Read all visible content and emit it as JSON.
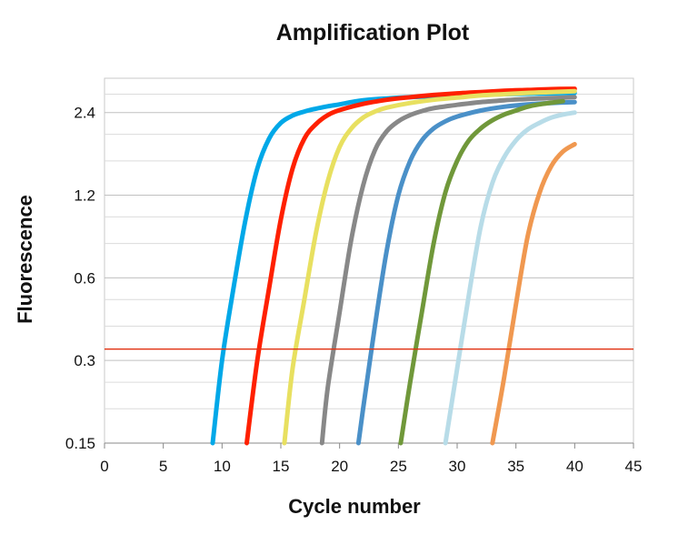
{
  "chart_data": {
    "type": "line",
    "title": "Amplification Plot",
    "xlabel": "Cycle number",
    "ylabel": "Fluorescence",
    "xlim": [
      0,
      45
    ],
    "ylim": [
      0.15,
      3.2
    ],
    "yscale": "log",
    "x_ticks": [
      0,
      5,
      10,
      15,
      20,
      25,
      30,
      35,
      40,
      45
    ],
    "y_ticks": [
      0.15,
      0.3,
      0.6,
      1.2,
      2.4
    ],
    "y_tick_labels": [
      "0.15",
      "0.3",
      "0.6",
      "1.2",
      "2.4"
    ],
    "grid": "horizontal",
    "legend": "none",
    "threshold": {
      "value": 0.33,
      "color": "#e03010"
    },
    "series": [
      {
        "color": "#00a8e8",
        "x": [
          9.2,
          10,
          11,
          12,
          13,
          14,
          15,
          16,
          17,
          18,
          19,
          20,
          21,
          22,
          24,
          26,
          28,
          30,
          32,
          34,
          36,
          38,
          40
        ],
        "y": [
          0.15,
          0.3,
          0.56,
          0.98,
          1.5,
          1.93,
          2.2,
          2.34,
          2.42,
          2.48,
          2.53,
          2.57,
          2.62,
          2.66,
          2.7,
          2.73,
          2.75,
          2.77,
          2.79,
          2.8,
          2.81,
          2.82,
          2.83
        ]
      },
      {
        "color": "#ff2000",
        "x": [
          12.1,
          13,
          14,
          15,
          16,
          17,
          18,
          19,
          20,
          22,
          24,
          26,
          28,
          30,
          32,
          34,
          36,
          38,
          40
        ],
        "y": [
          0.15,
          0.3,
          0.55,
          0.98,
          1.5,
          1.93,
          2.18,
          2.35,
          2.45,
          2.58,
          2.67,
          2.73,
          2.78,
          2.82,
          2.85,
          2.88,
          2.9,
          2.92,
          2.93
        ]
      },
      {
        "color": "#e8e060",
        "x": [
          15.3,
          16,
          17,
          18,
          19,
          20,
          21,
          22,
          23,
          24,
          26,
          28,
          30,
          32,
          34,
          36,
          38,
          40
        ],
        "y": [
          0.15,
          0.28,
          0.5,
          0.88,
          1.35,
          1.8,
          2.1,
          2.3,
          2.42,
          2.5,
          2.6,
          2.67,
          2.72,
          2.77,
          2.8,
          2.83,
          2.85,
          2.87
        ]
      },
      {
        "color": "#888888",
        "x": [
          18.5,
          19,
          20,
          21,
          22,
          23,
          24,
          25,
          26,
          27,
          28,
          30,
          32,
          34,
          36,
          38,
          40
        ],
        "y": [
          0.15,
          0.24,
          0.45,
          0.83,
          1.3,
          1.75,
          2.05,
          2.23,
          2.35,
          2.43,
          2.49,
          2.56,
          2.62,
          2.66,
          2.69,
          2.71,
          2.73
        ]
      },
      {
        "color": "#4a90c8",
        "x": [
          21.6,
          22,
          23,
          24,
          25,
          26,
          27,
          28,
          29,
          30,
          32,
          34,
          36,
          38,
          40
        ],
        "y": [
          0.15,
          0.2,
          0.4,
          0.75,
          1.2,
          1.6,
          1.9,
          2.1,
          2.23,
          2.32,
          2.44,
          2.52,
          2.57,
          2.6,
          2.62
        ]
      },
      {
        "color": "#70983a",
        "x": [
          25.2,
          26,
          27,
          28,
          29,
          30,
          31,
          32,
          33,
          34,
          35,
          36,
          37,
          39
        ],
        "y": [
          0.15,
          0.25,
          0.45,
          0.8,
          1.23,
          1.6,
          1.9,
          2.1,
          2.25,
          2.36,
          2.44,
          2.52,
          2.57,
          2.64
        ]
      },
      {
        "color": "#b8dce8",
        "x": [
          29.0,
          30,
          31,
          32,
          33,
          34,
          35,
          36,
          37,
          38,
          39,
          40
        ],
        "y": [
          0.15,
          0.28,
          0.52,
          0.92,
          1.33,
          1.65,
          1.9,
          2.08,
          2.2,
          2.3,
          2.36,
          2.4
        ]
      },
      {
        "color": "#f09850",
        "x": [
          33.0,
          34,
          35,
          36,
          37,
          38,
          39,
          40
        ],
        "y": [
          0.15,
          0.26,
          0.48,
          0.85,
          1.22,
          1.53,
          1.73,
          1.84
        ]
      }
    ]
  }
}
